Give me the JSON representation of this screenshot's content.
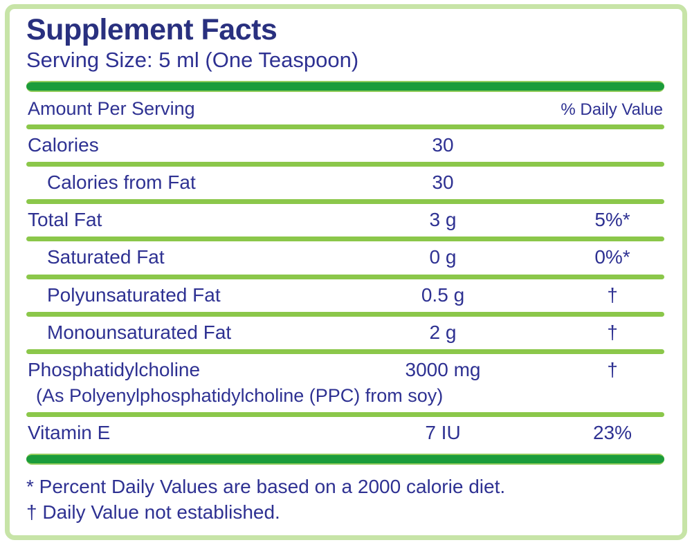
{
  "label": {
    "title": "Supplement Facts",
    "serving_size": "Serving Size: 5 ml (One Teaspoon)",
    "header": {
      "amount": "Amount Per Serving",
      "daily_value": "% Daily Value"
    },
    "rows": [
      {
        "name": "Calories",
        "amount": "30",
        "dv": "",
        "indent": false
      },
      {
        "name": "Calories from Fat",
        "amount": "30",
        "dv": "",
        "indent": true
      },
      {
        "name": "Total Fat",
        "amount": "3 g",
        "dv": "5%*",
        "indent": false
      },
      {
        "name": "Saturated Fat",
        "amount": "0 g",
        "dv": "0%*",
        "indent": true
      },
      {
        "name": "Polyunsaturated Fat",
        "amount": "0.5 g",
        "dv": "†",
        "indent": true
      },
      {
        "name": "Monounsaturated Fat",
        "amount": "2 g",
        "dv": "†",
        "indent": true
      },
      {
        "name": "Phosphatidylcholine",
        "amount": "3000 mg",
        "dv": "†",
        "indent": false,
        "subtext": "(As Polyenylphosphatidylcholine (PPC) from soy)"
      },
      {
        "name": "Vitamin E",
        "amount": "7 IU",
        "dv": "23%",
        "indent": false
      }
    ],
    "footnotes": [
      "* Percent Daily Values are based on a 2000 calorie diet.",
      "† Daily Value not established."
    ],
    "colors": {
      "text_navy": "#2e3192",
      "bar_green": "#1b9c3b",
      "separator_green": "#8bc74a",
      "frame_border_green": "#c7e4a7"
    }
  }
}
